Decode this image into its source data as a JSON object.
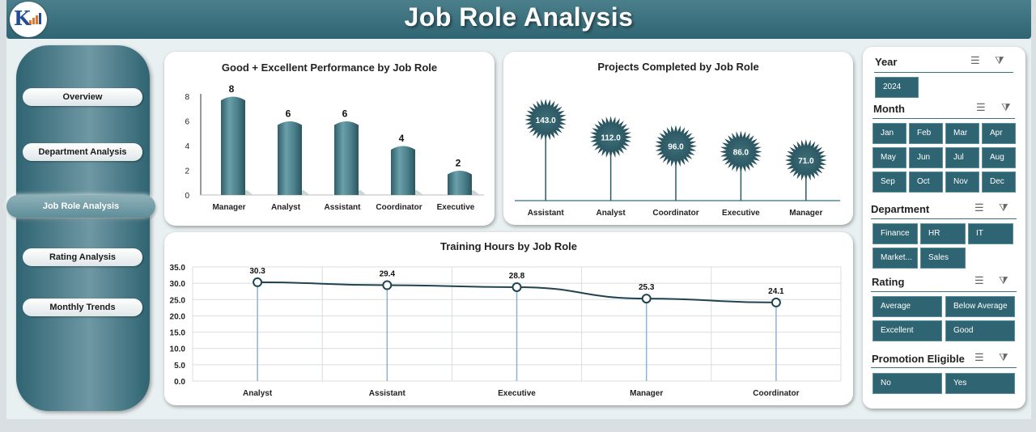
{
  "header": {
    "title": "Job Role Analysis",
    "logo_text": "K"
  },
  "nav": {
    "overview": "Overview",
    "department": "Department Analysis",
    "jobrole": "Job Role Analysis",
    "rating": "Rating Analysis",
    "monthly": "Monthly Trends"
  },
  "charts": {
    "performance": {
      "title": "Good + Excellent Performance by Job Role",
      "type": "bar",
      "categories": [
        "Manager",
        "Analyst",
        "Assistant",
        "Coordinator",
        "Executive"
      ],
      "values": [
        8,
        6,
        6,
        4,
        2
      ],
      "yticks": [
        "0",
        "2",
        "4",
        "6",
        "8"
      ],
      "ylim": [
        0,
        8
      ]
    },
    "projects": {
      "title": "Projects Completed by Job Role",
      "type": "bar",
      "categories": [
        "Assistant",
        "Analyst",
        "Coordinator",
        "Executive",
        "Manager"
      ],
      "values": [
        143.0,
        112.0,
        96.0,
        86.0,
        71.0
      ],
      "labels": [
        "143.0",
        "112.0",
        "96.0",
        "86.0",
        "71.0"
      ]
    },
    "training": {
      "title": "Training Hours by Job Role",
      "type": "line",
      "categories": [
        "Analyst",
        "Assistant",
        "Executive",
        "Manager",
        "Coordinator"
      ],
      "values": [
        30.3,
        29.4,
        28.8,
        25.3,
        24.1
      ],
      "labels": [
        "30.3",
        "29.4",
        "28.8",
        "25.3",
        "24.1"
      ],
      "yticks": [
        "0.0",
        "5.0",
        "10.0",
        "15.0",
        "20.0",
        "25.0",
        "30.0",
        "35.0"
      ],
      "ylim": [
        0,
        35
      ]
    }
  },
  "slicers": {
    "year": {
      "title": "Year",
      "items": [
        "2024"
      ]
    },
    "month": {
      "title": "Month",
      "items": [
        "Jan",
        "Feb",
        "Mar",
        "Apr",
        "May",
        "Jun",
        "Jul",
        "Aug",
        "Sep",
        "Oct",
        "Nov",
        "Dec"
      ]
    },
    "department": {
      "title": "Department",
      "items": [
        "Finance",
        "HR",
        "IT",
        "Market...",
        "Sales"
      ]
    },
    "rating": {
      "title": "Rating",
      "items": [
        "Average",
        "Below Average",
        "Excellent",
        "Good"
      ]
    },
    "promotion": {
      "title": "Promotion Eligible",
      "items": [
        "No",
        "Yes"
      ]
    }
  },
  "icons": {
    "multiselect": "multi-select-icon",
    "clearfilter": "clear-filter-icon"
  },
  "colors": {
    "accent": "#2f6472",
    "bar": "#4e8591",
    "line": "#1f4450"
  }
}
